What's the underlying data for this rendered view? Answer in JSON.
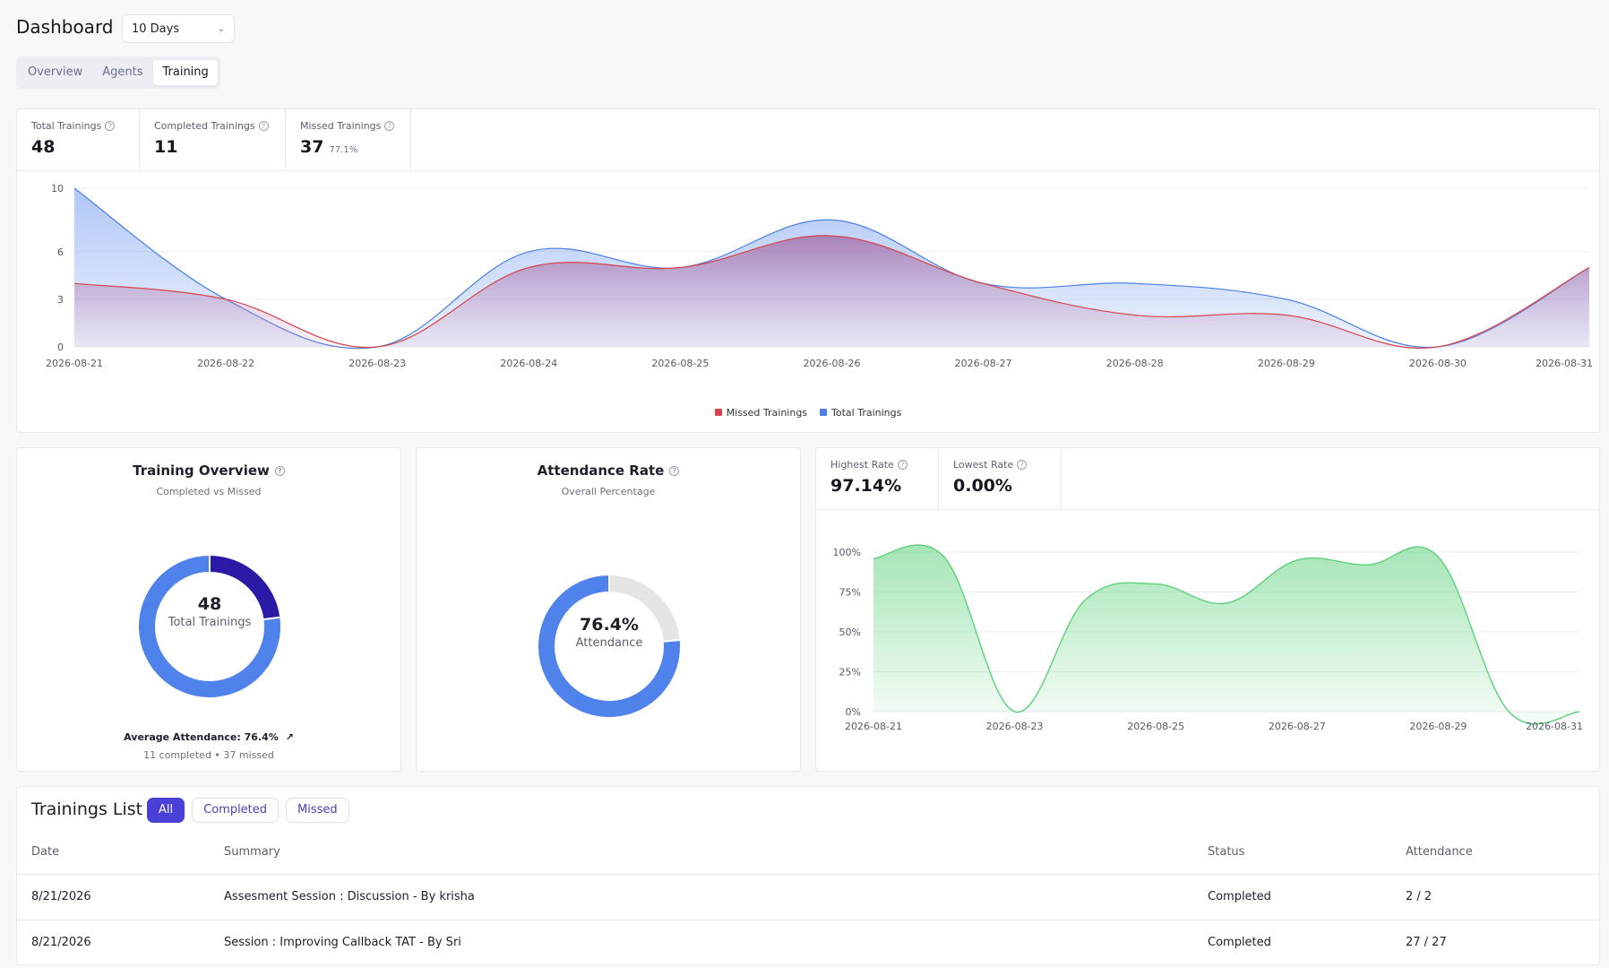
{
  "header": {
    "title": "Dashboard",
    "range_select": "10 Days"
  },
  "tabs": [
    {
      "label": "Overview",
      "active": false
    },
    {
      "label": "Agents",
      "active": false
    },
    {
      "label": "Training",
      "active": true
    }
  ],
  "stats": {
    "total_label": "Total Trainings",
    "total_value": "48",
    "completed_label": "Completed Trainings",
    "completed_value": "11",
    "missed_label": "Missed Trainings",
    "missed_value": "37",
    "missed_pct": "77.1%"
  },
  "trend_chart": {
    "legend_missed": "Missed Trainings",
    "legend_total": "Total Trainings",
    "y_ticks": [
      "10",
      "6",
      "3",
      "0"
    ],
    "x_ticks": [
      "2026-08-21",
      "2026-08-22",
      "2026-08-23",
      "2026-08-24",
      "2026-08-25",
      "2026-08-26",
      "2026-08-27",
      "2026-08-28",
      "2026-08-29",
      "2026-08-30",
      "2026-08-31"
    ]
  },
  "overview_card": {
    "title": "Training Overview",
    "subtitle": "Completed vs Missed",
    "center_value": "48",
    "center_label": "Total Trainings",
    "avg_attendance": "Average Attendance: 76.4%",
    "breakdown": "11 completed • 37 missed"
  },
  "attendance_card": {
    "title": "Attendance Rate",
    "subtitle": "Overall Percentage",
    "center_value": "76.4%",
    "center_label": "Attendance"
  },
  "rate_card": {
    "highest_label": "Highest Rate",
    "highest_value": "97.14%",
    "lowest_label": "Lowest Rate",
    "lowest_value": "0.00%",
    "y_ticks": [
      "100%",
      "75%",
      "50%",
      "25%",
      "0%"
    ],
    "x_ticks": [
      "2026-08-21",
      "2026-08-23",
      "2026-08-25",
      "2026-08-27",
      "2026-08-29",
      "2026-08-31"
    ]
  },
  "trainings_list": {
    "title": "Trainings List",
    "filters": [
      {
        "label": "All",
        "active": true
      },
      {
        "label": "Completed",
        "active": false
      },
      {
        "label": "Missed",
        "active": false
      }
    ],
    "columns": [
      "Date",
      "Summary",
      "Status",
      "Attendance"
    ],
    "rows": [
      {
        "date": "8/21/2026",
        "summary": "Assesment Session : Discussion - By krisha",
        "status": "Completed",
        "attendance": "2 / 2"
      },
      {
        "date": "8/21/2026",
        "summary": "Session : Improving Callback TAT - By Sri",
        "status": "Completed",
        "attendance": "27 / 27"
      }
    ]
  },
  "colors": {
    "missed": "#d9434a",
    "total": "#4a80e8",
    "donut_completed": "#2b1aa6",
    "donut_primary": "#4f82ea",
    "donut_track": "#e5e5e5",
    "rate_green": "#5cd17a",
    "accent": "#4a3fd6"
  },
  "chart_data": [
    {
      "type": "area",
      "x": [
        "2026-08-21",
        "2026-08-22",
        "2026-08-23",
        "2026-08-24",
        "2026-08-25",
        "2026-08-26",
        "2026-08-27",
        "2026-08-28",
        "2026-08-29",
        "2026-08-30",
        "2026-08-31"
      ],
      "series": [
        {
          "name": "Total Trainings",
          "values": [
            10,
            3,
            0,
            6,
            5,
            8,
            4,
            4,
            3,
            0,
            5
          ]
        },
        {
          "name": "Missed Trainings",
          "values": [
            4,
            3,
            0,
            5,
            5,
            7,
            4,
            2,
            2,
            0,
            5
          ]
        }
      ],
      "ylim": [
        0,
        10
      ],
      "y_ticks": [
        0,
        3,
        6,
        10
      ],
      "legend": "bottom-center",
      "grid": true
    },
    {
      "type": "pie",
      "categories": [
        "Completed",
        "Missed"
      ],
      "values": [
        11,
        37
      ]
    },
    {
      "type": "pie",
      "categories": [
        "Attendance",
        "Remaining"
      ],
      "values": [
        76.4,
        23.6
      ]
    },
    {
      "type": "area",
      "x": [
        "2026-08-21",
        "2026-08-22",
        "2026-08-23",
        "2026-08-24",
        "2026-08-25",
        "2026-08-26",
        "2026-08-27",
        "2026-08-28",
        "2026-08-29",
        "2026-08-30",
        "2026-08-31"
      ],
      "series": [
        {
          "values": [
            96,
            97,
            0,
            70,
            80,
            68,
            95,
            92,
            97,
            0,
            0
          ]
        }
      ],
      "ylim": [
        0,
        100
      ],
      "y_ticks": [
        0,
        25,
        50,
        75,
        100
      ],
      "grid": true
    }
  ]
}
